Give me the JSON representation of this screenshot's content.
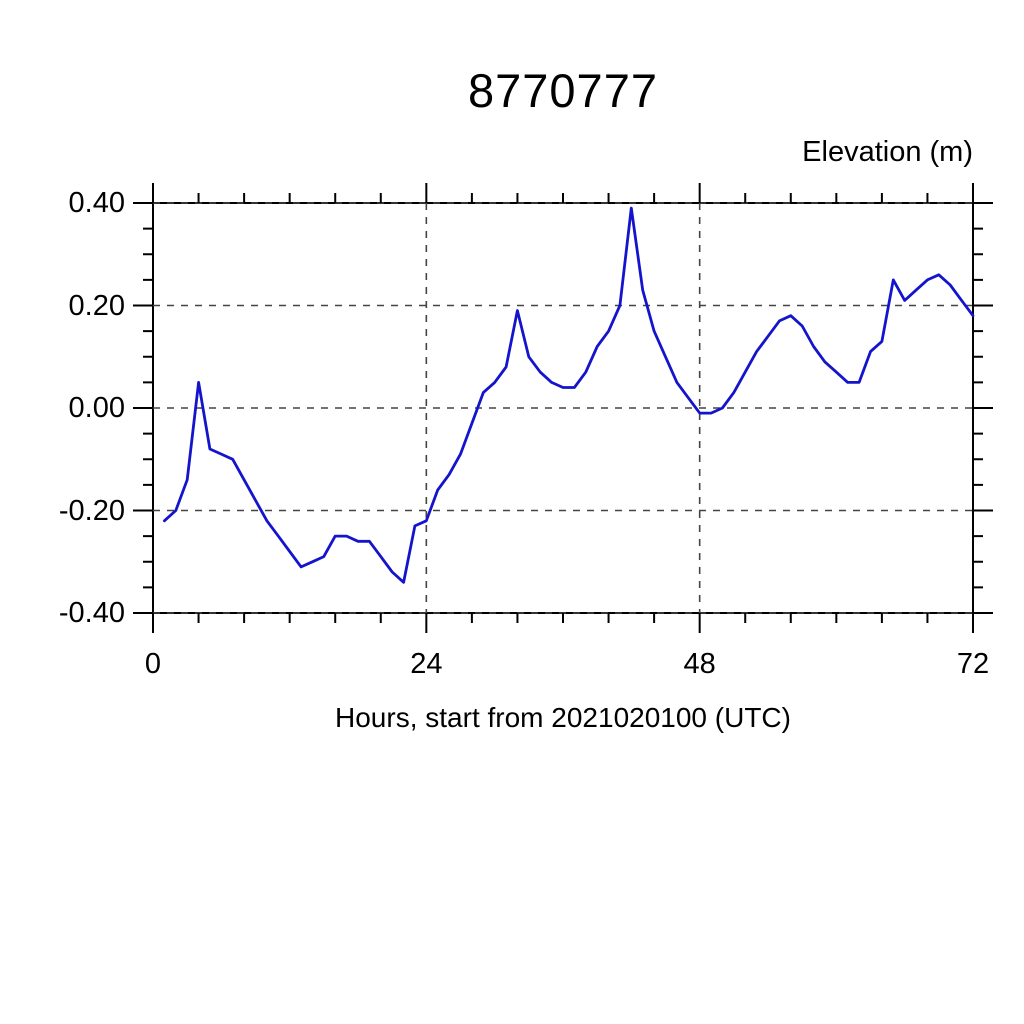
{
  "title": "8770777",
  "y_axis": {
    "label": "Elevation (m)",
    "min": -0.4,
    "max": 0.4,
    "major_tick_interval": 0.2,
    "minor_tick_interval": 0.05,
    "tick_values": [
      0.4,
      0.2,
      0.0,
      -0.2,
      -0.4
    ],
    "tick_labels": [
      "0.40",
      "0.20",
      "0.00",
      "-0.20",
      "-0.40"
    ]
  },
  "x_axis": {
    "label": "Hours, start from 2021020100 (UTC)",
    "min": 0,
    "max": 72,
    "major_tick_interval": 24,
    "minor_tick_interval": 4,
    "tick_values": [
      0,
      24,
      48,
      72
    ],
    "tick_labels": [
      "0",
      "24",
      "48",
      "72"
    ]
  },
  "grid": {
    "x_gridline_values": [
      24,
      48
    ],
    "y_gridline_values": [
      0.4,
      0.2,
      0.0,
      -0.2,
      -0.4
    ],
    "style": "dashed"
  },
  "colors": {
    "line": "#1414CC",
    "frame": "#000000",
    "grid": "#444444",
    "background": "#ffffff",
    "text": "#000000"
  },
  "chart_data": {
    "type": "line",
    "title": "8770777",
    "xlabel": "Hours, start from 2021020100 (UTC)",
    "ylabel": "Elevation (m)",
    "xlim": [
      0,
      72
    ],
    "ylim": [
      -0.4,
      0.4
    ],
    "legend": "none",
    "grid": "dashed, at y every 0.20 and x at 24 and 48",
    "series_name": "elevation",
    "hours": [
      1,
      2,
      3,
      4,
      5,
      6,
      7,
      8,
      9,
      10,
      11,
      12,
      13,
      14,
      15,
      16,
      17,
      18,
      19,
      20,
      21,
      22,
      23,
      24,
      25,
      26,
      27,
      28,
      29,
      30,
      31,
      32,
      33,
      34,
      35,
      36,
      37,
      38,
      39,
      40,
      41,
      42,
      43,
      44,
      45,
      46,
      47,
      48,
      49,
      50,
      51,
      52,
      53,
      54,
      55,
      56,
      57,
      58,
      59,
      60,
      61,
      62,
      63,
      64,
      65,
      66,
      67,
      68,
      69,
      70,
      71,
      72
    ],
    "values": [
      -0.22,
      -0.2,
      -0.14,
      0.05,
      -0.08,
      -0.09,
      -0.1,
      -0.14,
      -0.18,
      -0.22,
      -0.25,
      -0.28,
      -0.31,
      -0.3,
      -0.29,
      -0.25,
      -0.25,
      -0.26,
      -0.26,
      -0.29,
      -0.32,
      -0.34,
      -0.23,
      -0.22,
      -0.16,
      -0.13,
      -0.09,
      -0.03,
      0.03,
      0.05,
      0.08,
      0.19,
      0.1,
      0.07,
      0.05,
      0.04,
      0.04,
      0.07,
      0.12,
      0.15,
      0.2,
      0.39,
      0.23,
      0.15,
      0.1,
      0.05,
      0.02,
      -0.01,
      -0.01,
      0.0,
      0.03,
      0.07,
      0.11,
      0.14,
      0.17,
      0.18,
      0.16,
      0.12,
      0.09,
      0.07,
      0.05,
      0.05,
      0.11,
      0.13,
      0.25,
      0.21,
      0.23,
      0.25,
      0.26,
      0.24,
      0.21,
      0.18
    ]
  }
}
